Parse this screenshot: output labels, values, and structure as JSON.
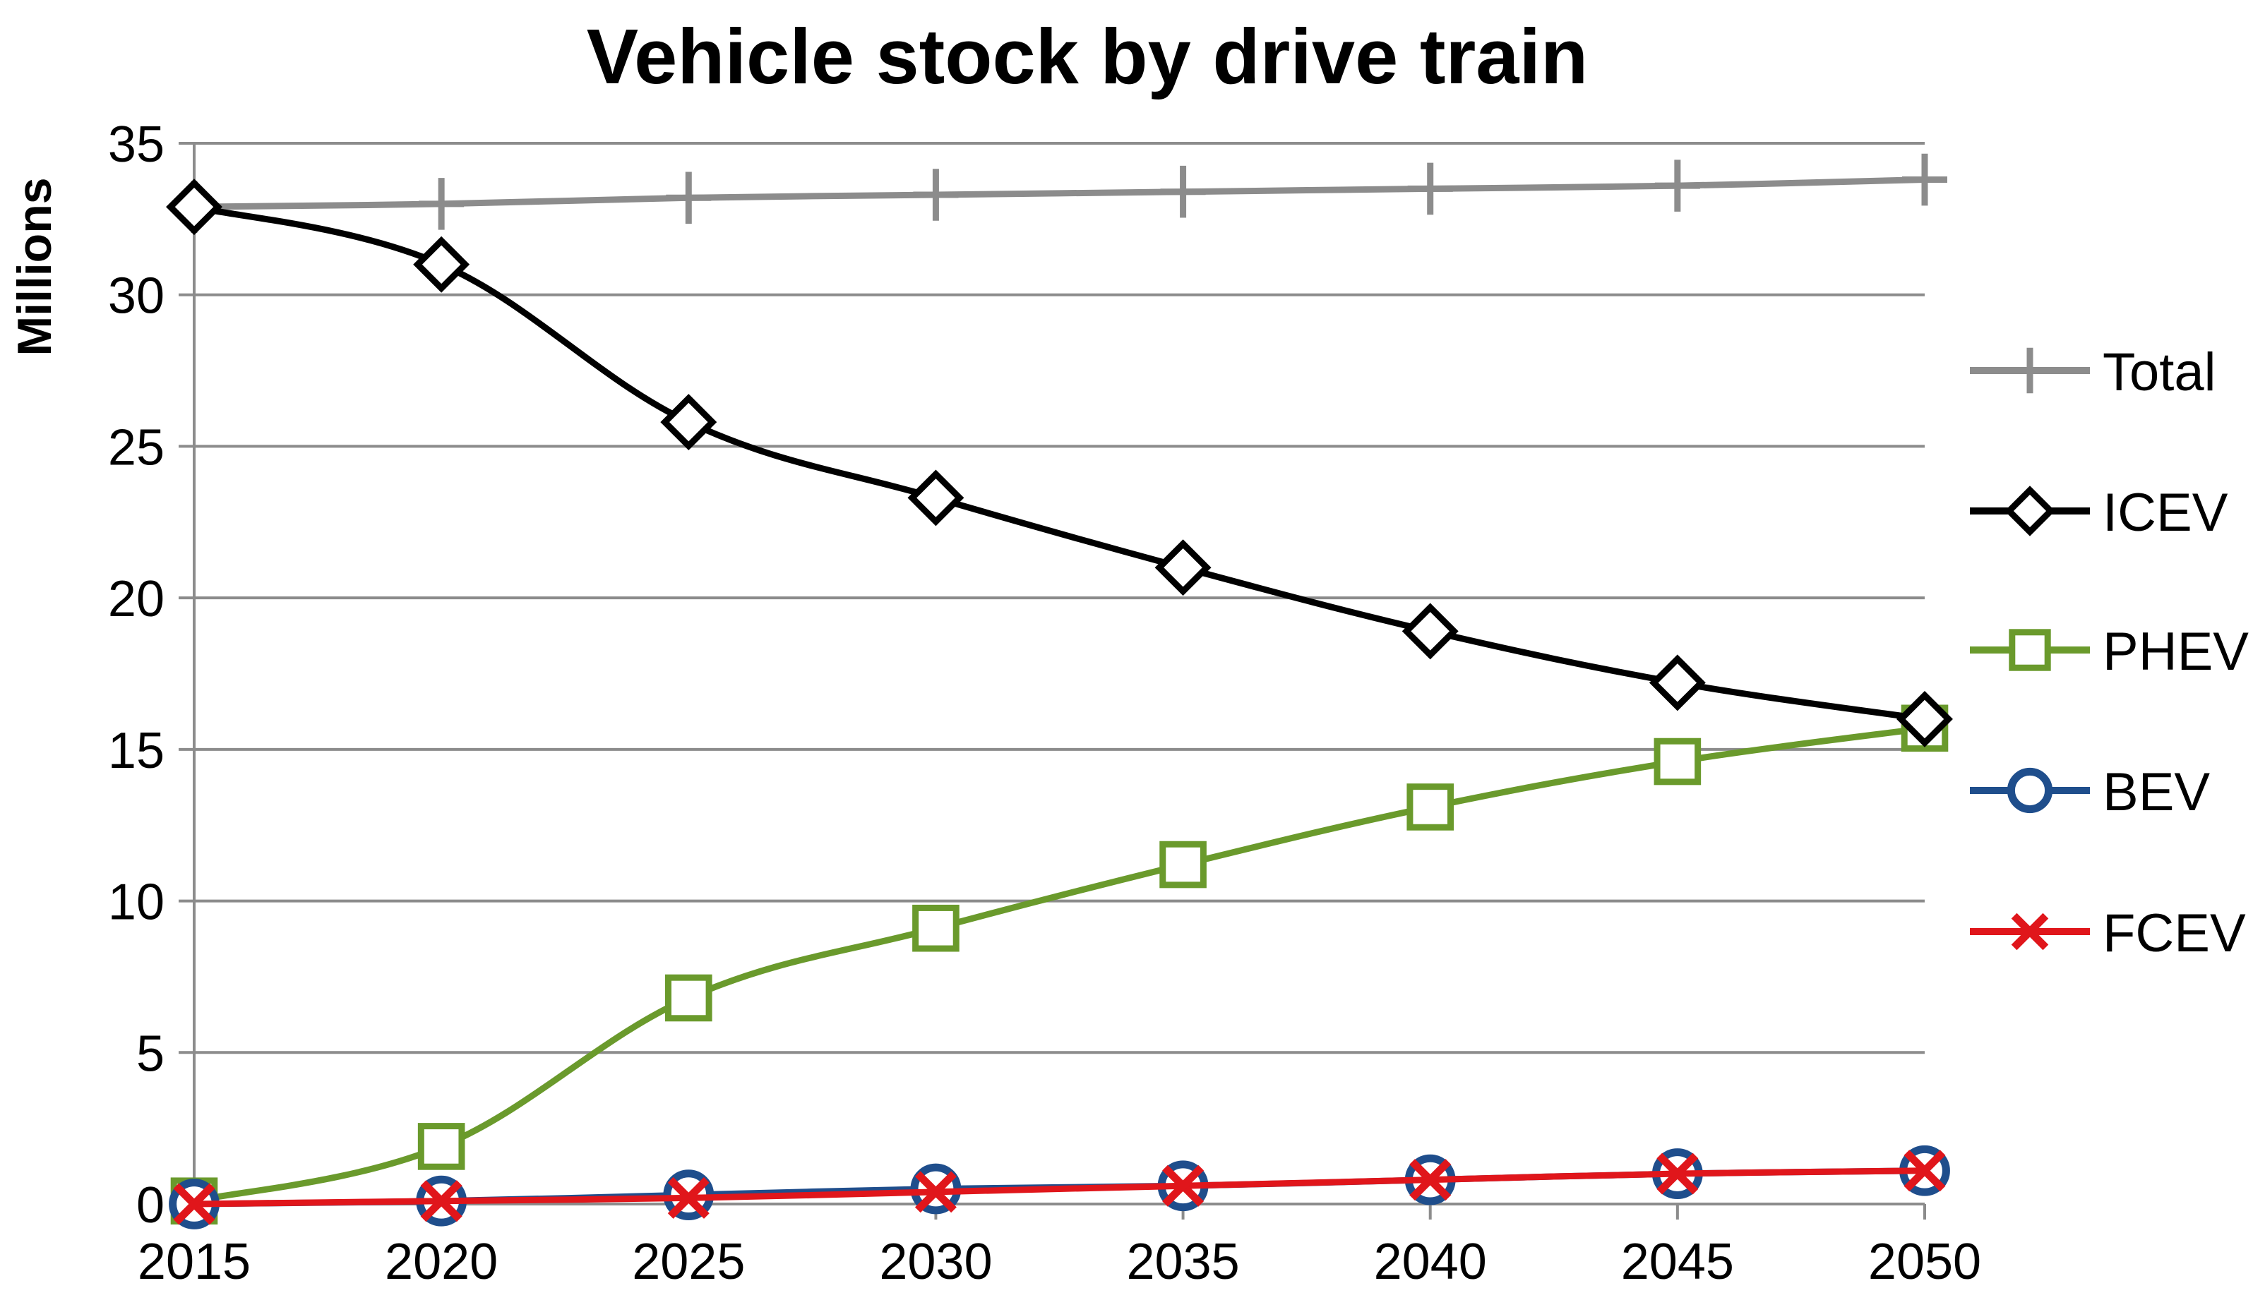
{
  "chart_data": {
    "type": "line",
    "title": "Vehicle stock by drive train",
    "xlabel": "",
    "ylabel": "Millions",
    "x": [
      2015,
      2020,
      2025,
      2030,
      2035,
      2040,
      2045,
      2050
    ],
    "x_tick_labels": [
      "2015",
      "2020",
      "2025",
      "2030",
      "2035",
      "2040",
      "2045",
      "2050"
    ],
    "ylim": [
      0,
      35
    ],
    "y_ticks": [
      0,
      5,
      10,
      15,
      20,
      25,
      30,
      35
    ],
    "y_tick_labels": [
      "0",
      "5",
      "10",
      "15",
      "20",
      "25",
      "30",
      "35"
    ],
    "grid": true,
    "legend_position": "right",
    "series": [
      {
        "name": "Total",
        "color": "#8c8c8c",
        "marker": "plus",
        "values": [
          32.9,
          33.0,
          33.2,
          33.3,
          33.4,
          33.5,
          33.6,
          33.8
        ]
      },
      {
        "name": "ICEV",
        "color": "#000000",
        "marker": "diamond",
        "values": [
          32.9,
          31.0,
          25.8,
          23.3,
          21.0,
          18.9,
          17.2,
          16.0
        ]
      },
      {
        "name": "PHEV",
        "color": "#6a9a2c",
        "marker": "square",
        "values": [
          0.1,
          1.9,
          6.8,
          9.1,
          11.2,
          13.1,
          14.6,
          15.7
        ]
      },
      {
        "name": "BEV",
        "color": "#1f4e8c",
        "marker": "circle",
        "values": [
          0.0,
          0.1,
          0.3,
          0.5,
          0.6,
          0.8,
          1.0,
          1.1
        ]
      },
      {
        "name": "FCEV",
        "color": "#e0161b",
        "marker": "x",
        "values": [
          0.0,
          0.1,
          0.2,
          0.4,
          0.6,
          0.8,
          1.0,
          1.1
        ]
      }
    ]
  }
}
